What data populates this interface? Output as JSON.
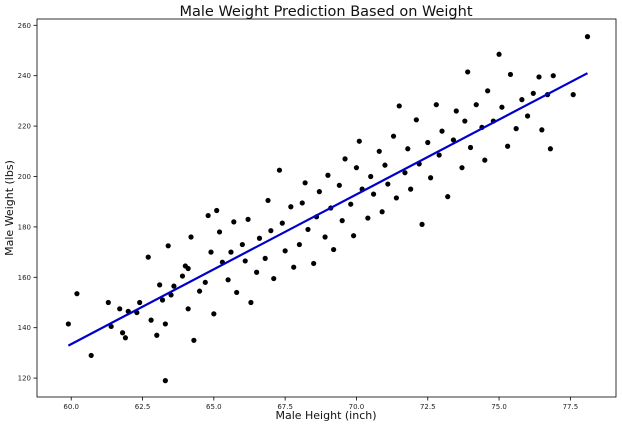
{
  "chart_data": {
    "type": "scatter",
    "title": "Male Weight Prediction Based on Weight",
    "xlabel": "Male Height (inch)",
    "ylabel": "Male Weight (lbs)",
    "xlim": [
      58.8,
      79.1
    ],
    "ylim": [
      112.5,
      262.5
    ],
    "xticks": [
      "60.0",
      "62.5",
      "65.0",
      "67.5",
      "70.0",
      "72.5",
      "75.0",
      "77.5"
    ],
    "xtick_values": [
      60.0,
      62.5,
      65.0,
      67.5,
      70.0,
      72.5,
      75.0,
      77.5
    ],
    "yticks": [
      "120",
      "140",
      "160",
      "180",
      "200",
      "220",
      "240",
      "260"
    ],
    "ytick_values": [
      120,
      140,
      160,
      180,
      200,
      220,
      240,
      260
    ],
    "grid": false,
    "legend": "none",
    "series": [
      {
        "kind": "scatter",
        "color": "#000000",
        "points": [
          [
            59.9,
            141.5
          ],
          [
            60.2,
            153.5
          ],
          [
            60.7,
            129.0
          ],
          [
            61.3,
            150.0
          ],
          [
            61.4,
            140.5
          ],
          [
            61.7,
            147.5
          ],
          [
            61.8,
            138.0
          ],
          [
            61.9,
            136.0
          ],
          [
            62.0,
            146.5
          ],
          [
            62.3,
            146.0
          ],
          [
            62.4,
            150.0
          ],
          [
            62.7,
            168.0
          ],
          [
            62.8,
            143.0
          ],
          [
            63.0,
            137.0
          ],
          [
            63.1,
            157.0
          ],
          [
            63.2,
            151.0
          ],
          [
            63.3,
            119.0
          ],
          [
            63.4,
            172.5
          ],
          [
            63.3,
            141.5
          ],
          [
            63.5,
            153.0
          ],
          [
            63.6,
            156.5
          ],
          [
            63.9,
            160.5
          ],
          [
            64.0,
            164.5
          ],
          [
            64.1,
            163.5
          ],
          [
            64.1,
            147.5
          ],
          [
            64.2,
            176.0
          ],
          [
            64.3,
            135.0
          ],
          [
            64.5,
            154.5
          ],
          [
            64.7,
            158.0
          ],
          [
            64.8,
            184.5
          ],
          [
            64.9,
            170.0
          ],
          [
            65.0,
            145.5
          ],
          [
            65.1,
            186.5
          ],
          [
            65.2,
            178.0
          ],
          [
            65.3,
            166.0
          ],
          [
            65.5,
            159.0
          ],
          [
            65.6,
            170.0
          ],
          [
            65.7,
            182.0
          ],
          [
            65.8,
            154.0
          ],
          [
            66.0,
            173.0
          ],
          [
            66.1,
            166.5
          ],
          [
            66.2,
            183.0
          ],
          [
            66.3,
            150.0
          ],
          [
            66.5,
            162.0
          ],
          [
            66.6,
            175.5
          ],
          [
            66.8,
            167.5
          ],
          [
            66.9,
            190.5
          ],
          [
            67.0,
            178.5
          ],
          [
            67.1,
            159.5
          ],
          [
            67.3,
            202.5
          ],
          [
            67.4,
            181.5
          ],
          [
            67.5,
            170.5
          ],
          [
            67.7,
            188.0
          ],
          [
            67.8,
            164.0
          ],
          [
            68.0,
            173.0
          ],
          [
            68.1,
            189.5
          ],
          [
            68.2,
            197.5
          ],
          [
            68.3,
            179.0
          ],
          [
            68.5,
            165.5
          ],
          [
            68.6,
            184.0
          ],
          [
            68.7,
            194.0
          ],
          [
            68.9,
            176.0
          ],
          [
            69.0,
            200.5
          ],
          [
            69.1,
            187.5
          ],
          [
            69.2,
            171.0
          ],
          [
            69.4,
            196.5
          ],
          [
            69.5,
            182.5
          ],
          [
            69.6,
            207.0
          ],
          [
            69.8,
            189.0
          ],
          [
            69.9,
            176.5
          ],
          [
            70.0,
            203.5
          ],
          [
            70.1,
            214.0
          ],
          [
            70.2,
            195.0
          ],
          [
            70.4,
            183.5
          ],
          [
            70.5,
            200.0
          ],
          [
            70.6,
            193.0
          ],
          [
            70.8,
            210.0
          ],
          [
            70.9,
            186.0
          ],
          [
            71.0,
            204.5
          ],
          [
            71.1,
            197.0
          ],
          [
            71.3,
            216.0
          ],
          [
            71.4,
            191.5
          ],
          [
            71.5,
            228.0
          ],
          [
            71.7,
            201.5
          ],
          [
            71.8,
            211.0
          ],
          [
            71.9,
            195.0
          ],
          [
            72.1,
            222.5
          ],
          [
            72.2,
            205.0
          ],
          [
            72.3,
            181.0
          ],
          [
            72.5,
            213.5
          ],
          [
            72.6,
            199.5
          ],
          [
            72.8,
            228.5
          ],
          [
            72.9,
            208.5
          ],
          [
            73.0,
            218.0
          ],
          [
            73.2,
            192.0
          ],
          [
            73.4,
            214.5
          ],
          [
            73.5,
            226.0
          ],
          [
            73.7,
            203.5
          ],
          [
            73.8,
            222.0
          ],
          [
            73.9,
            241.5
          ],
          [
            74.0,
            211.5
          ],
          [
            74.2,
            228.5
          ],
          [
            74.4,
            219.5
          ],
          [
            74.5,
            206.5
          ],
          [
            74.6,
            234.0
          ],
          [
            74.8,
            222.0
          ],
          [
            75.0,
            248.5
          ],
          [
            75.1,
            227.5
          ],
          [
            75.3,
            212.0
          ],
          [
            75.4,
            240.5
          ],
          [
            75.6,
            219.0
          ],
          [
            75.8,
            230.5
          ],
          [
            76.0,
            224.0
          ],
          [
            76.2,
            233.0
          ],
          [
            76.4,
            239.5
          ],
          [
            76.5,
            218.5
          ],
          [
            76.7,
            232.5
          ],
          [
            76.9,
            240.0
          ],
          [
            76.8,
            211.0
          ],
          [
            77.6,
            232.5
          ],
          [
            78.1,
            255.5
          ]
        ]
      },
      {
        "kind": "line",
        "color": "#0000cc",
        "points": [
          [
            59.9,
            132.9
          ],
          [
            78.1,
            241.0
          ]
        ]
      }
    ]
  }
}
